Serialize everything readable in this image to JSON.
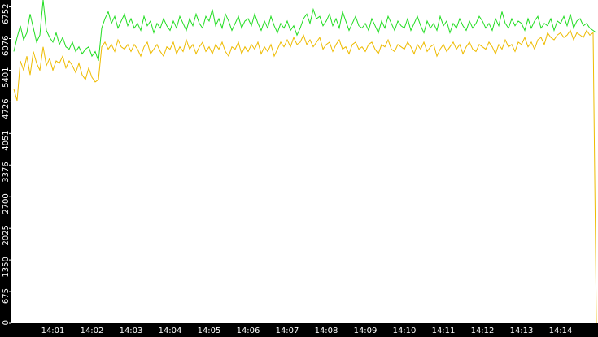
{
  "chart_data": {
    "type": "line",
    "categories": [
      null,
      null,
      null,
      null,
      null,
      null,
      null,
      null,
      null,
      null,
      null,
      null,
      "14:01",
      null,
      null,
      null,
      null,
      null,
      null,
      null,
      null,
      null,
      null,
      null,
      "14:02",
      null,
      null,
      null,
      null,
      null,
      null,
      null,
      null,
      null,
      null,
      null,
      "14:03",
      null,
      null,
      null,
      null,
      null,
      null,
      null,
      null,
      null,
      null,
      null,
      "14:04",
      null,
      null,
      null,
      null,
      null,
      null,
      null,
      null,
      null,
      null,
      null,
      "14:05",
      null,
      null,
      null,
      null,
      null,
      null,
      null,
      null,
      null,
      null,
      null,
      "14:06",
      null,
      null,
      null,
      null,
      null,
      null,
      null,
      null,
      null,
      null,
      null,
      "14:07",
      null,
      null,
      null,
      null,
      null,
      null,
      null,
      null,
      null,
      null,
      null,
      "14:08",
      null,
      null,
      null,
      null,
      null,
      null,
      null,
      null,
      null,
      null,
      null,
      "14:09",
      null,
      null,
      null,
      null,
      null,
      null,
      null,
      null,
      null,
      null,
      null,
      "14:10",
      null,
      null,
      null,
      null,
      null,
      null,
      null,
      null,
      null,
      null,
      null,
      "14:11",
      null,
      null,
      null,
      null,
      null,
      null,
      null,
      null,
      null,
      null,
      null,
      "14:12",
      null,
      null,
      null,
      null,
      null,
      null,
      null,
      null,
      null,
      null,
      null,
      "14:13",
      null,
      null,
      null,
      null,
      null,
      null,
      null,
      null,
      null,
      null,
      null,
      "14:14",
      null,
      null,
      null,
      null,
      null,
      null,
      null,
      null,
      null,
      null,
      null
    ],
    "series": [
      {
        "color": "#22dd22",
        "values": [
          5800,
          6100,
          6350,
          6050,
          6200,
          6600,
          6300,
          6000,
          6150,
          6900,
          6250,
          6100,
          6000,
          6200,
          5950,
          6100,
          5900,
          5850,
          6000,
          5800,
          5900,
          5750,
          5850,
          5900,
          5700,
          5800,
          5600,
          6300,
          6500,
          6650,
          6400,
          6550,
          6300,
          6450,
          6600,
          6350,
          6500,
          6300,
          6400,
          6250,
          6550,
          6350,
          6450,
          6200,
          6400,
          6300,
          6500,
          6350,
          6250,
          6450,
          6300,
          6550,
          6400,
          6250,
          6500,
          6350,
          6600,
          6400,
          6300,
          6550,
          6450,
          6700,
          6350,
          6500,
          6300,
          6600,
          6450,
          6250,
          6400,
          6550,
          6300,
          6450,
          6500,
          6350,
          6600,
          6400,
          6250,
          6450,
          6300,
          6550,
          6350,
          6200,
          6400,
          6300,
          6450,
          6250,
          6350,
          6150,
          6300,
          6500,
          6600,
          6400,
          6700,
          6500,
          6550,
          6350,
          6450,
          6600,
          6350,
          6500,
          6300,
          6650,
          6450,
          6250,
          6400,
          6550,
          6350,
          6300,
          6400,
          6250,
          6500,
          6350,
          6200,
          6450,
          6300,
          6550,
          6400,
          6250,
          6450,
          6350,
          6300,
          6500,
          6250,
          6400,
          6550,
          6350,
          6200,
          6450,
          6300,
          6400,
          6250,
          6550,
          6350,
          6450,
          6200,
          6400,
          6300,
          6500,
          6350,
          6250,
          6450,
          6300,
          6400,
          6550,
          6450,
          6300,
          6400,
          6250,
          6500,
          6350,
          6650,
          6400,
          6300,
          6500,
          6350,
          6450,
          6400,
          6250,
          6500,
          6300,
          6450,
          6550,
          6300,
          6400,
          6350,
          6500,
          6250,
          6450,
          6400,
          6550,
          6350,
          6600,
          6300,
          6450,
          6500,
          6350,
          6400,
          6300,
          6250,
          6200
        ]
      },
      {
        "color": "#eebb00",
        "values": [
          5000,
          4750,
          5600,
          5400,
          5700,
          5300,
          5800,
          5550,
          5400,
          5900,
          5500,
          5650,
          5400,
          5600,
          5550,
          5700,
          5450,
          5600,
          5500,
          5350,
          5550,
          5300,
          5200,
          5450,
          5250,
          5150,
          5200,
          5900,
          6000,
          5850,
          5950,
          5800,
          6050,
          5900,
          5850,
          5950,
          5800,
          5950,
          5850,
          5700,
          5900,
          6000,
          5750,
          5850,
          5950,
          5800,
          5700,
          5900,
          5850,
          6000,
          5750,
          5900,
          5800,
          6050,
          5850,
          5950,
          5750,
          5900,
          6000,
          5800,
          5900,
          5750,
          5950,
          5850,
          6000,
          5800,
          5700,
          5900,
          5850,
          6000,
          5750,
          5900,
          5800,
          5950,
          5850,
          6000,
          5750,
          5900,
          5800,
          5950,
          5700,
          5850,
          6000,
          5900,
          6050,
          5900,
          6100,
          5950,
          6000,
          6150,
          5950,
          6050,
          5900,
          6000,
          6100,
          5850,
          5950,
          6000,
          5800,
          5950,
          6050,
          5850,
          5900,
          5750,
          5950,
          6000,
          5850,
          5900,
          5800,
          5950,
          6000,
          5850,
          5750,
          5950,
          5900,
          6050,
          5850,
          5800,
          5950,
          5900,
          5850,
          6000,
          5900,
          5750,
          5950,
          5850,
          6000,
          5800,
          5900,
          5950,
          5700,
          5850,
          5950,
          5800,
          5900,
          6000,
          5850,
          5950,
          5750,
          5900,
          6000,
          5850,
          5800,
          5950,
          5900,
          5850,
          6000,
          5900,
          5750,
          5950,
          5850,
          6050,
          5900,
          5950,
          5800,
          6000,
          5950,
          6100,
          5900,
          6000,
          5850,
          6050,
          6100,
          5950,
          6200,
          6100,
          6050,
          6150,
          6200,
          6100,
          6150,
          6250,
          6050,
          6200,
          6150,
          6100,
          6250,
          6150,
          6200,
          0
        ]
      }
    ],
    "ylim": [
      0,
      6900
    ],
    "yticks": [
      0,
      675,
      1350,
      2025,
      2700,
      3376,
      4051,
      4726,
      5401,
      6076,
      6752
    ]
  }
}
